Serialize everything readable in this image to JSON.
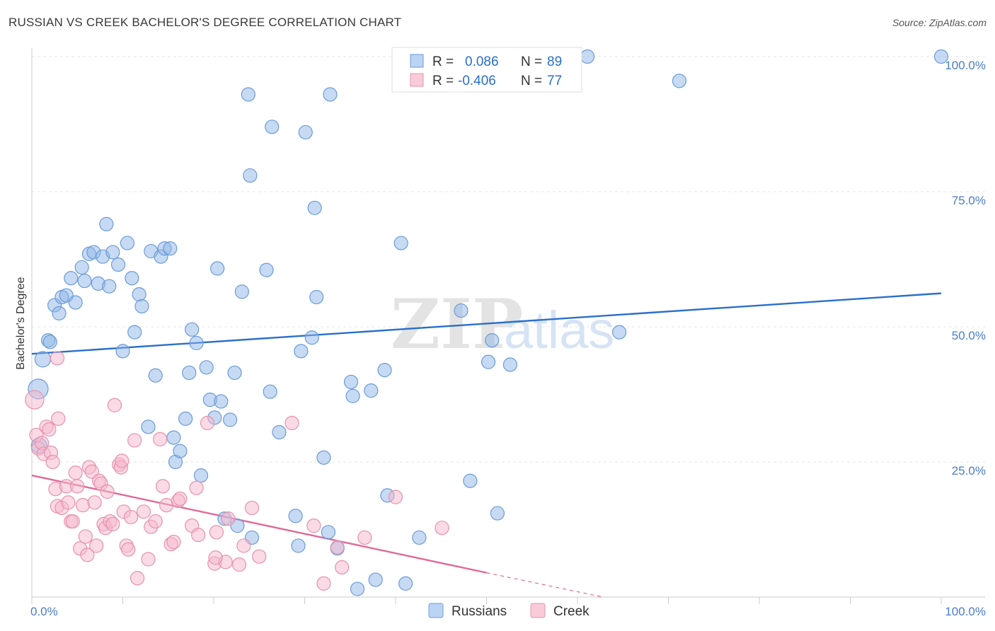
{
  "header": {
    "title": "RUSSIAN VS CREEK BACHELOR'S DEGREE CORRELATION CHART",
    "source": "Source: ZipAtlas.com"
  },
  "watermark": {
    "zip": "ZIP",
    "atlas": "atlas"
  },
  "chart_data": {
    "type": "scatter",
    "title": "RUSSIAN VS CREEK BACHELOR'S DEGREE CORRELATION CHART",
    "xlabel": "",
    "ylabel": "Bachelor's Degree",
    "xlim": [
      0,
      100
    ],
    "ylim": [
      0,
      100
    ],
    "x_tick_labels": [
      {
        "value": 0,
        "label": "0.0%"
      },
      {
        "value": 100,
        "label": "100.0%"
      }
    ],
    "y_tick_labels": [
      {
        "value": 25,
        "label": "25.0%"
      },
      {
        "value": 50,
        "label": "50.0%"
      },
      {
        "value": 75,
        "label": "75.0%"
      },
      {
        "value": 100,
        "label": "100.0%"
      }
    ],
    "grid": true,
    "legend_position": "bottom",
    "stats_box_position": "top-center",
    "stats": [
      {
        "series": "Russians",
        "r_label": "R =",
        "r": "0.086",
        "n_label": "N =",
        "n": "89"
      },
      {
        "series": "Creek",
        "r_label": "R =",
        "r": "-0.406",
        "n_label": "N =",
        "n": "77"
      }
    ],
    "series": [
      {
        "name": "Russians",
        "color": "#8fb6e8",
        "stroke": "#6b9bd8",
        "trend_color": "#2a6fcc",
        "trend": {
          "x": [
            0,
            100
          ],
          "y": [
            45.0,
            56.2
          ]
        },
        "points": [
          [
            0.7,
            38.5
          ],
          [
            0.8,
            28
          ],
          [
            1.2,
            44
          ],
          [
            1.8,
            47.5
          ],
          [
            2.0,
            47.2
          ],
          [
            2.5,
            54
          ],
          [
            3.0,
            52.5
          ],
          [
            3.3,
            55.5
          ],
          [
            3.8,
            55.8
          ],
          [
            4.3,
            59
          ],
          [
            4.8,
            54.5
          ],
          [
            5.5,
            61
          ],
          [
            5.8,
            58.5
          ],
          [
            6.3,
            63.5
          ],
          [
            6.8,
            63.8
          ],
          [
            7.3,
            58
          ],
          [
            7.8,
            63
          ],
          [
            8.2,
            69
          ],
          [
            8.5,
            57.5
          ],
          [
            8.9,
            63.8
          ],
          [
            9.5,
            61.5
          ],
          [
            10.0,
            45.5
          ],
          [
            10.5,
            65.5
          ],
          [
            11.0,
            59
          ],
          [
            11.3,
            49
          ],
          [
            11.8,
            56
          ],
          [
            12.1,
            53.8
          ],
          [
            12.8,
            31.5
          ],
          [
            13.1,
            64
          ],
          [
            13.6,
            41
          ],
          [
            14.2,
            63
          ],
          [
            14.6,
            64.5
          ],
          [
            15.2,
            64.5
          ],
          [
            15.6,
            29.5
          ],
          [
            15.8,
            25
          ],
          [
            16.3,
            27
          ],
          [
            16.9,
            33
          ],
          [
            17.3,
            41.5
          ],
          [
            17.6,
            49.5
          ],
          [
            18.1,
            47
          ],
          [
            18.6,
            22.5
          ],
          [
            19.2,
            42.5
          ],
          [
            19.6,
            36.5
          ],
          [
            20.1,
            33.2
          ],
          [
            20.4,
            60.8
          ],
          [
            20.8,
            36.2
          ],
          [
            21.2,
            14.5
          ],
          [
            21.8,
            32.8
          ],
          [
            22.3,
            41.5
          ],
          [
            22.6,
            13.2
          ],
          [
            23.1,
            56.5
          ],
          [
            23.8,
            93
          ],
          [
            24.0,
            78
          ],
          [
            24.2,
            11
          ],
          [
            25.8,
            60.5
          ],
          [
            26.2,
            38
          ],
          [
            26.4,
            87
          ],
          [
            27.2,
            30.5
          ],
          [
            29.0,
            15
          ],
          [
            29.3,
            9.5
          ],
          [
            29.6,
            45.5
          ],
          [
            30.1,
            86
          ],
          [
            30.8,
            48
          ],
          [
            31.1,
            72
          ],
          [
            31.3,
            55.5
          ],
          [
            32.1,
            25.8
          ],
          [
            32.6,
            12
          ],
          [
            32.8,
            93
          ],
          [
            33.6,
            9
          ],
          [
            35.1,
            39.8
          ],
          [
            35.3,
            37.2
          ],
          [
            35.8,
            1.5
          ],
          [
            37.3,
            38.2
          ],
          [
            37.8,
            3.2
          ],
          [
            38.8,
            42
          ],
          [
            39.1,
            18.8
          ],
          [
            40.6,
            65.5
          ],
          [
            41.1,
            2.5
          ],
          [
            42.6,
            11
          ],
          [
            47.2,
            53
          ],
          [
            48.2,
            21.5
          ],
          [
            50.2,
            43.5
          ],
          [
            50.6,
            47.5
          ],
          [
            51.2,
            15.5
          ],
          [
            52.6,
            43
          ],
          [
            59.6,
            100
          ],
          [
            61.1,
            100
          ],
          [
            64.6,
            49
          ],
          [
            71.2,
            95.5
          ],
          [
            100,
            100
          ]
        ]
      },
      {
        "name": "Creek",
        "color": "#f5b8cb",
        "stroke": "#e890ac",
        "trend_color": "#e06a96",
        "trend": {
          "x": [
            0,
            50
          ],
          "y": [
            22.5,
            4.5
          ]
        },
        "trend_dashed": {
          "x": [
            50,
            62.8
          ],
          "y": [
            4.5,
            0.0
          ]
        },
        "points": [
          [
            0.3,
            36.5
          ],
          [
            0.5,
            30
          ],
          [
            0.7,
            27.5
          ],
          [
            1.1,
            28.5
          ],
          [
            1.3,
            26.5
          ],
          [
            1.6,
            31.5
          ],
          [
            1.9,
            31
          ],
          [
            2.1,
            26.7
          ],
          [
            2.3,
            25
          ],
          [
            2.6,
            20
          ],
          [
            2.8,
            16.8
          ],
          [
            2.9,
            33
          ],
          [
            3.3,
            16.5
          ],
          [
            3.8,
            20.5
          ],
          [
            4.0,
            17.5
          ],
          [
            4.3,
            14
          ],
          [
            4.5,
            14
          ],
          [
            4.8,
            23
          ],
          [
            5.0,
            20.5
          ],
          [
            5.3,
            9
          ],
          [
            5.6,
            17
          ],
          [
            5.9,
            11.2
          ],
          [
            6.1,
            7.8
          ],
          [
            6.3,
            24
          ],
          [
            6.6,
            23.2
          ],
          [
            6.9,
            17.5
          ],
          [
            7.1,
            9.5
          ],
          [
            7.4,
            21.5
          ],
          [
            7.6,
            21
          ],
          [
            7.9,
            13.5
          ],
          [
            8.1,
            12.8
          ],
          [
            8.3,
            19.5
          ],
          [
            8.6,
            14
          ],
          [
            8.9,
            13.5
          ],
          [
            9.1,
            35.5
          ],
          [
            9.6,
            24.5
          ],
          [
            9.8,
            24
          ],
          [
            10.1,
            15.8
          ],
          [
            10.4,
            9.5
          ],
          [
            10.6,
            8.8
          ],
          [
            10.9,
            14.8
          ],
          [
            11.3,
            29
          ],
          [
            11.6,
            3.5
          ],
          [
            12.3,
            15.8
          ],
          [
            12.8,
            7
          ],
          [
            13.1,
            13
          ],
          [
            13.6,
            14
          ],
          [
            14.1,
            29.2
          ],
          [
            14.4,
            20.5
          ],
          [
            14.8,
            17
          ],
          [
            15.3,
            9.8
          ],
          [
            15.6,
            10.2
          ],
          [
            16.1,
            17.8
          ],
          [
            16.3,
            18.2
          ],
          [
            17.6,
            13.2
          ],
          [
            18.1,
            20.2
          ],
          [
            18.3,
            11.5
          ],
          [
            19.3,
            32.2
          ],
          [
            20.1,
            6.2
          ],
          [
            20.3,
            12
          ],
          [
            21.3,
            6.5
          ],
          [
            21.6,
            14.5
          ],
          [
            22.8,
            6
          ],
          [
            23.3,
            9.5
          ],
          [
            24.2,
            16.5
          ],
          [
            25.0,
            7.5
          ],
          [
            28.6,
            32.2
          ],
          [
            31.0,
            13.2
          ],
          [
            32.1,
            2.5
          ],
          [
            33.6,
            9.2
          ],
          [
            34.1,
            5.5
          ],
          [
            36.6,
            11
          ],
          [
            40.0,
            18.5
          ],
          [
            45.1,
            12.8
          ],
          [
            2.8,
            44.2
          ],
          [
            9.9,
            25.2
          ],
          [
            20.2,
            7.3
          ]
        ]
      }
    ]
  },
  "legend": {
    "items": [
      {
        "name": "Russians",
        "color": "#bcd4f4",
        "stroke": "#6b9bd8"
      },
      {
        "name": "Creek",
        "color": "#f8cbd8",
        "stroke": "#e890ac"
      }
    ]
  }
}
